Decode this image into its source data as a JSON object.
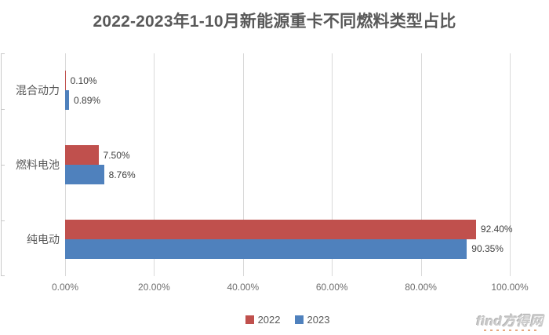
{
  "title": "2022-2023年1-10月新能源重卡不同燃料类型占比",
  "chart_data": {
    "type": "bar",
    "orientation": "horizontal",
    "title": "2022-2023年1-10月新能源重卡不同燃料类型占比",
    "categories": [
      "混合动力",
      "燃料电池",
      "纯电动"
    ],
    "categories_order": "top-to-bottom",
    "series": [
      {
        "name": "2022",
        "color": "#C0504D",
        "values": [
          0.1,
          7.5,
          92.4
        ],
        "labels": [
          "0.10%",
          "7.50%",
          "92.40%"
        ]
      },
      {
        "name": "2023",
        "color": "#4F81BD",
        "values": [
          0.89,
          8.76,
          90.35
        ],
        "labels": [
          "0.89%",
          "8.76%",
          "90.35%"
        ]
      }
    ],
    "x_ticks": [
      "0.00%",
      "20.00%",
      "40.00%",
      "60.00%",
      "80.00%",
      "100.00%"
    ],
    "xlim": [
      0,
      100
    ],
    "grid": "vertical-only",
    "legend_position": "bottom-center"
  },
  "watermark": {
    "text": "find方得网"
  },
  "colors": {
    "series_2022": "#C0504D",
    "series_2023": "#4F81BD",
    "gridline": "#D9D9D9",
    "axis_line": "#C9C9C9",
    "title_text": "#595959",
    "data_label_text": "#404040",
    "axis_label_text": "#6E6E6E",
    "background": "#FFFFFF"
  }
}
